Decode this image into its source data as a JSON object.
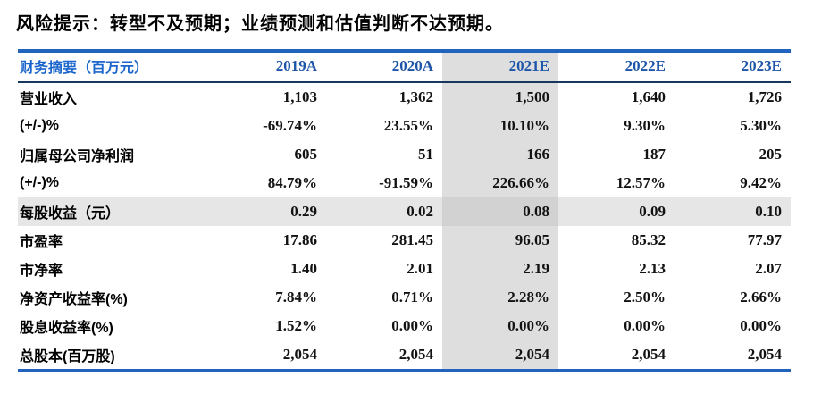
{
  "risk_note": "风险提示：转型不及预期；业绩预测和估值判断不达预期。",
  "table": {
    "header": {
      "label": "财务摘要（百万元）",
      "years": [
        "2019A",
        "2020A",
        "2021E",
        "2022E",
        "2023E"
      ]
    },
    "highlight_column": "2021E",
    "highlight_row": "每股收益（元）",
    "rows": [
      {
        "label": "营业收入",
        "values": [
          "1,103",
          "1,362",
          "1,500",
          "1,640",
          "1,726"
        ]
      },
      {
        "label": "(+/-)%",
        "values": [
          "-69.74%",
          "23.55%",
          "10.10%",
          "9.30%",
          "5.30%"
        ]
      },
      {
        "label": "归属母公司净利润",
        "values": [
          "605",
          "51",
          "166",
          "187",
          "205"
        ]
      },
      {
        "label": "(+/-)%",
        "values": [
          "84.79%",
          "-91.59%",
          "226.66%",
          "12.57%",
          "9.42%"
        ]
      },
      {
        "label": "每股收益（元）",
        "values": [
          "0.29",
          "0.02",
          "0.08",
          "0.09",
          "0.10"
        ]
      },
      {
        "label": "市盈率",
        "values": [
          "17.86",
          "281.45",
          "96.05",
          "85.32",
          "77.97"
        ]
      },
      {
        "label": "市净率",
        "values": [
          "1.40",
          "2.01",
          "2.19",
          "2.13",
          "2.07"
        ]
      },
      {
        "label": "净资产收益率(%)",
        "values": [
          "7.84%",
          "0.71%",
          "2.28%",
          "2.50%",
          "2.66%"
        ]
      },
      {
        "label": "股息收益率(%)",
        "values": [
          "1.52%",
          "0.00%",
          "0.00%",
          "0.00%",
          "0.00%"
        ]
      },
      {
        "label": "总股本(百万股)",
        "values": [
          "2,054",
          "2,054",
          "2,054",
          "2,054",
          "2,054"
        ]
      }
    ]
  },
  "colors": {
    "table_border_blue": "#2263BE",
    "header_separator_navy": "#17375E",
    "header_label_blue": "#1B66CC",
    "header_year_blue": "#1D55A8",
    "highlight_column_gray": "#DEDEDE",
    "highlight_row_gray": "#E6E6E6",
    "highlight_intersection_gray": "#D2D2D2"
  }
}
